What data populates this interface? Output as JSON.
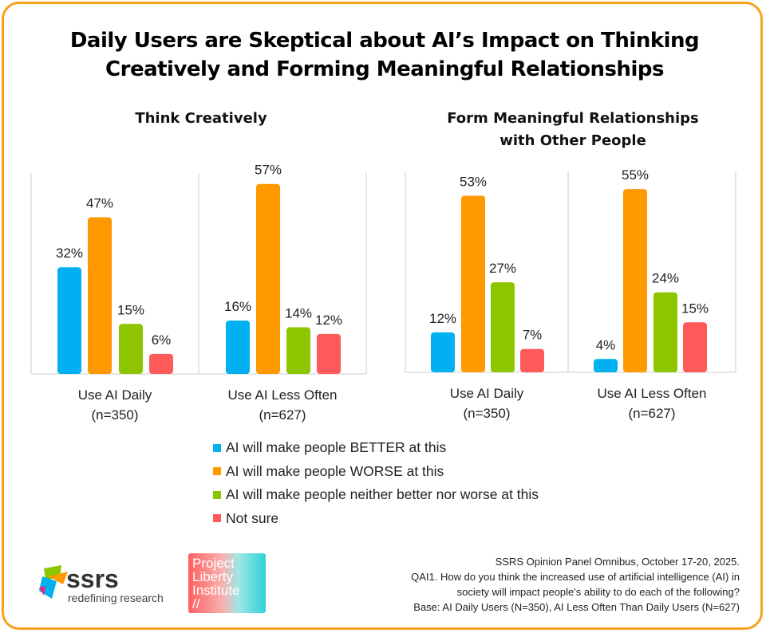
{
  "title_lines": [
    "Daily Users are Skeptical about AI’s Impact on Thinking",
    "Creatively and Forming Meaningful Relationships"
  ],
  "colors": {
    "border": "#F7A21B",
    "better": "#00B0F0",
    "worse": "#FF9900",
    "neither": "#8DC600",
    "not_sure": "#FF5A5A"
  },
  "chart_data": [
    {
      "type": "bar",
      "title": "Think Creatively",
      "categories": [
        "Use AI Daily (n=350)",
        "Use AI Less Often (n=627)"
      ],
      "category_lines": [
        [
          "Use AI Daily",
          "(n=350)"
        ],
        [
          "Use AI Less Often",
          "(n=627)"
        ]
      ],
      "series": [
        {
          "name": "AI will make people BETTER at this",
          "values": [
            32,
            16
          ]
        },
        {
          "name": "AI  will make people WORSE at this",
          "values": [
            47,
            57
          ]
        },
        {
          "name": "AI will make people neither better nor worse at this",
          "values": [
            15,
            14
          ]
        },
        {
          "name": "Not sure",
          "values": [
            6,
            12
          ]
        }
      ],
      "unit": "%",
      "ylim": [
        0,
        60
      ],
      "grid": false
    },
    {
      "type": "bar",
      "title": "Form Meaningful Relationships with Other People",
      "title_lines": [
        "Form Meaningful Relationships",
        "with Other People"
      ],
      "categories": [
        "Use AI Daily (n=350)",
        "Use AI Less Often (n=627)"
      ],
      "category_lines": [
        [
          "Use AI Daily",
          "(n=350)"
        ],
        [
          "Use AI Less Often",
          "(n=627)"
        ]
      ],
      "series": [
        {
          "name": "AI will make people BETTER at this",
          "values": [
            12,
            4
          ]
        },
        {
          "name": "AI  will make people WORSE at this",
          "values": [
            53,
            55
          ]
        },
        {
          "name": "AI will make people neither better nor worse at this",
          "values": [
            27,
            24
          ]
        },
        {
          "name": "Not sure",
          "values": [
            7,
            15
          ]
        }
      ],
      "unit": "%",
      "ylim": [
        0,
        60
      ],
      "grid": false
    }
  ],
  "legend": [
    "AI will make people BETTER at this",
    "AI  will make people WORSE at this",
    "AI will make people neither better nor worse at this",
    "Not sure"
  ],
  "footer": [
    "SSRS Opinion Panel Omnibus, October 17-20, 2025.",
    "QAI1. How do you think the increased use of artificial intelligence (AI) in",
    "society will impact people's ability to do each of the following?",
    "Base: AI Daily Users (N=350), AI Less Often Than Daily Users (N=627)"
  ],
  "logos": {
    "ssrs": "ssrs",
    "ssrs_tagline": "redefining research",
    "pli": [
      "Project",
      "Liberty",
      "Institute",
      "//"
    ]
  }
}
